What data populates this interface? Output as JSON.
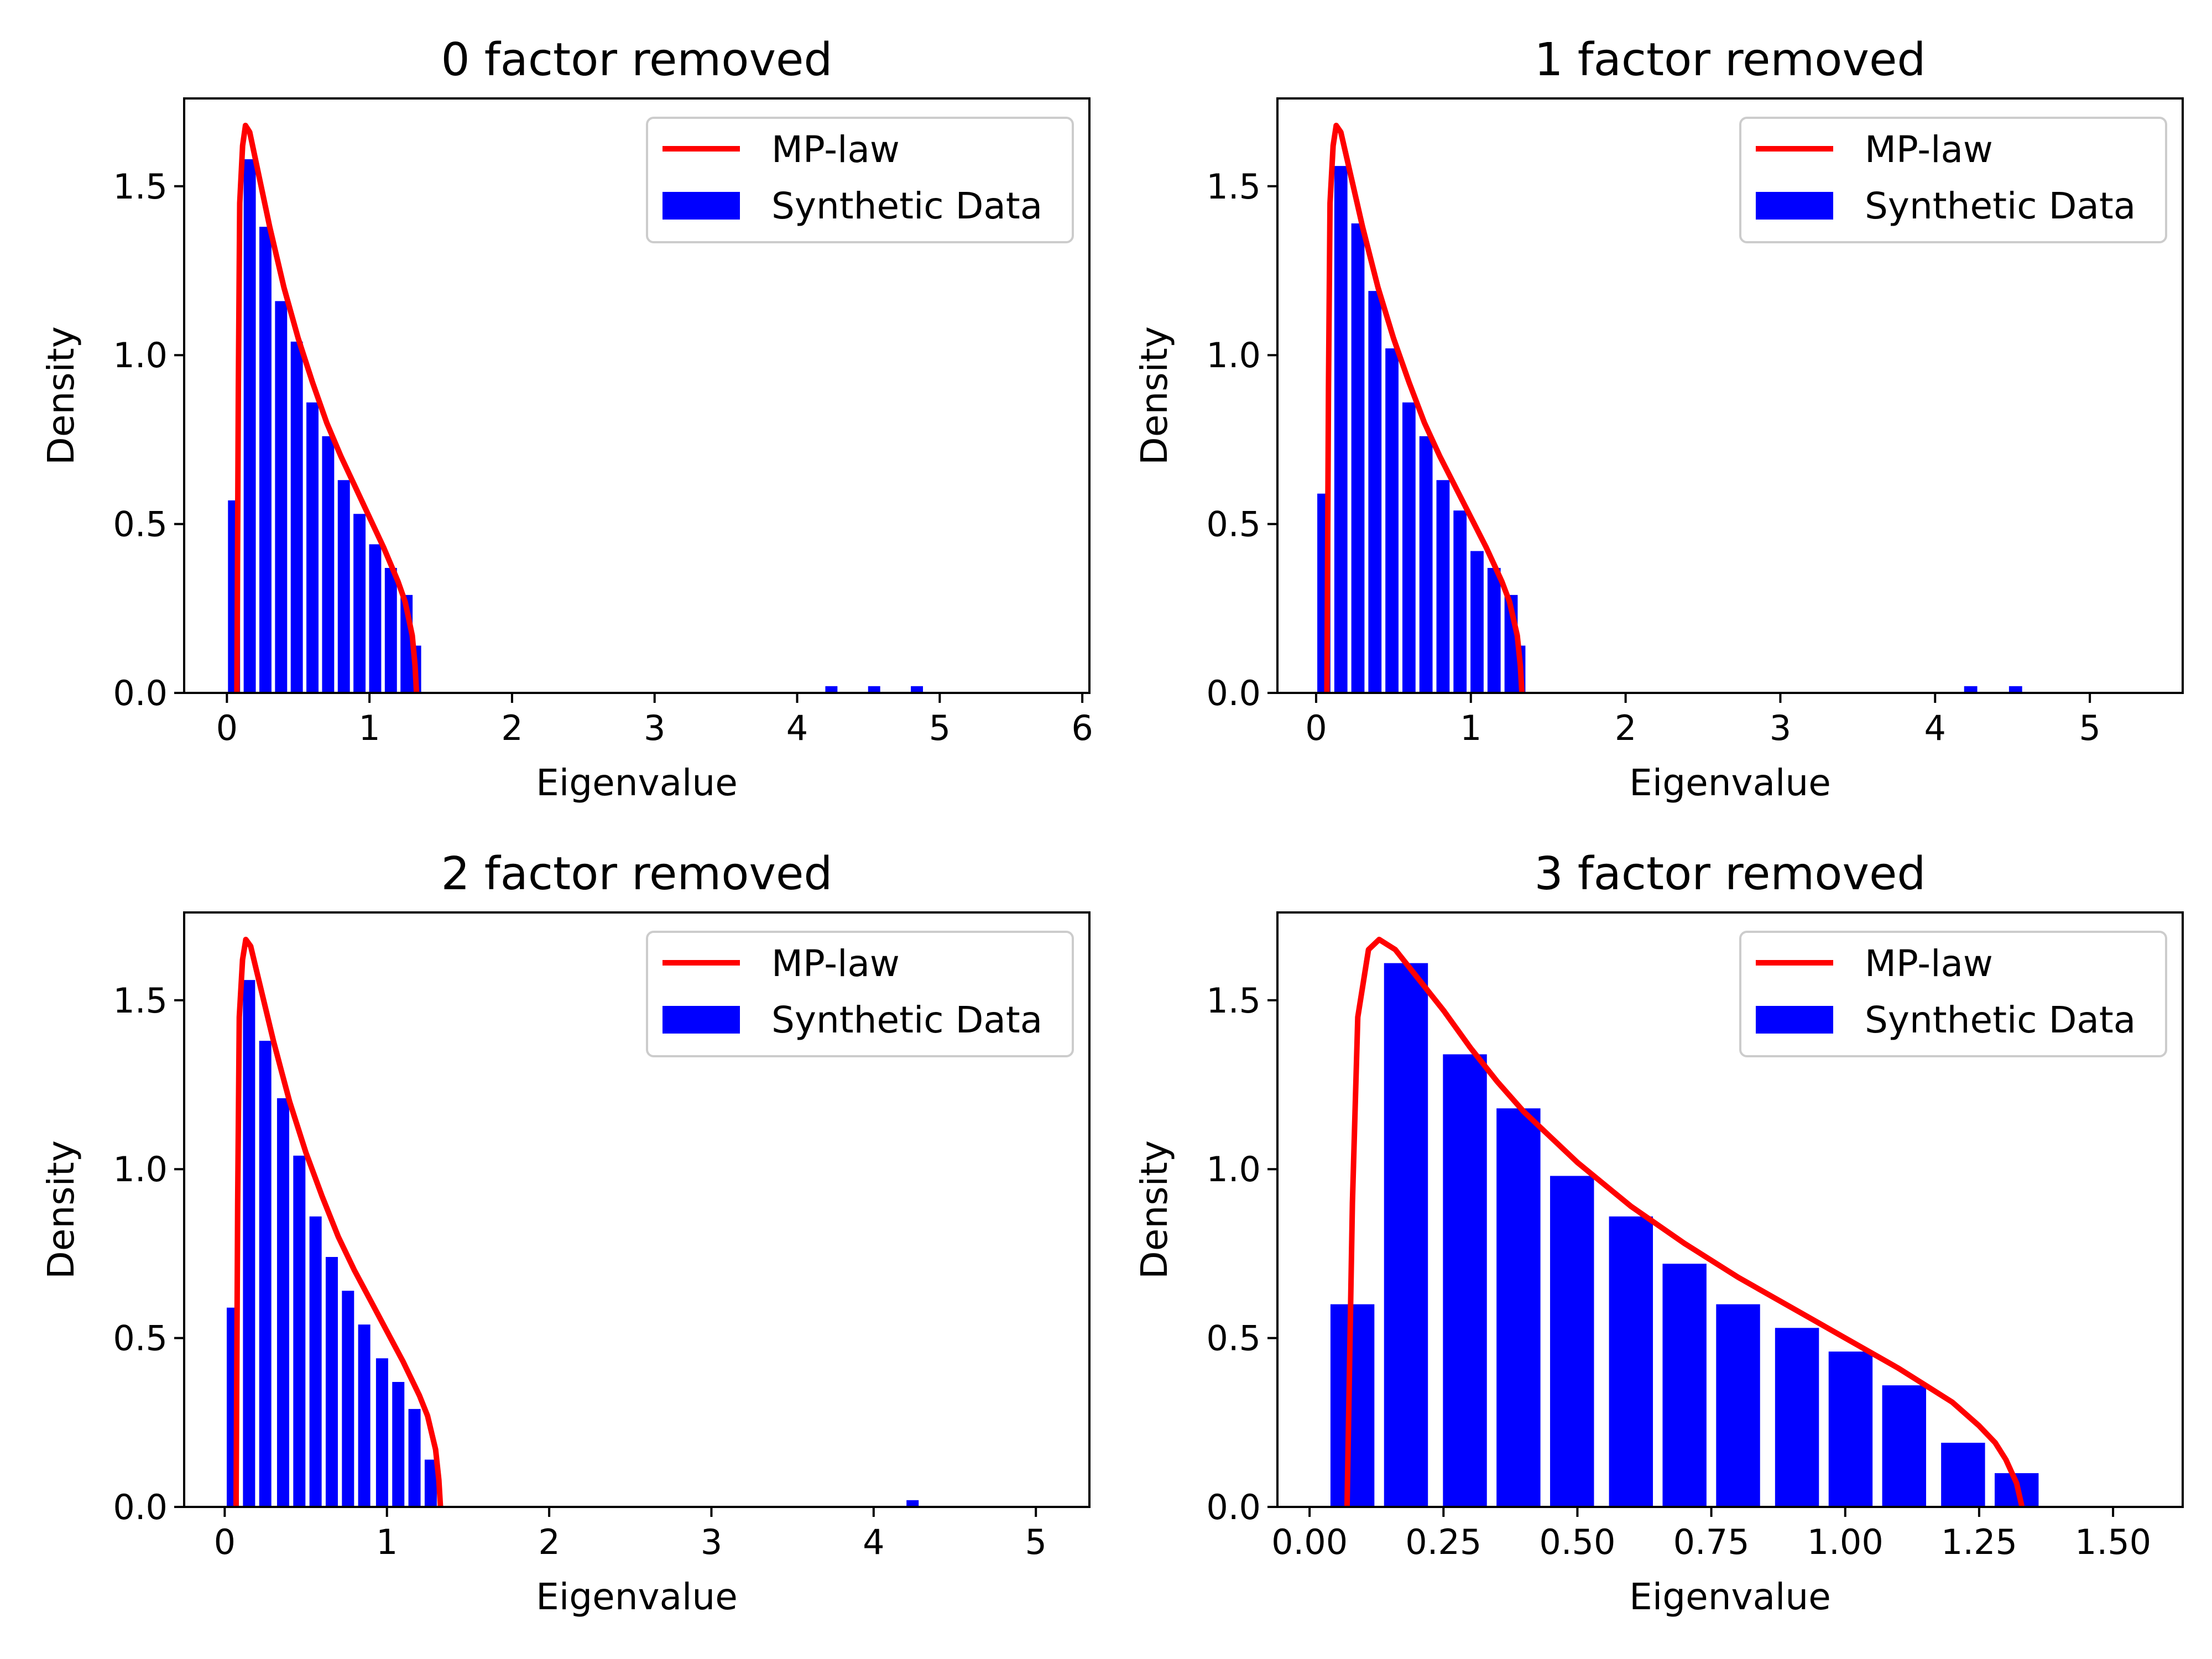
{
  "colors": {
    "mp_line": "#ff0000",
    "bars": "#0000ff",
    "axes": "#000000",
    "legend_border": "#cccccc"
  },
  "legend": {
    "line_label": "MP-law",
    "bar_label": "Synthetic Data",
    "placement": "upper right"
  },
  "chart_data": [
    {
      "type": "bar",
      "title": "0 factor removed",
      "xlabel": "Eigenvalue",
      "ylabel": "Density",
      "xlim": [
        -0.3,
        6.05
      ],
      "ylim": [
        0,
        1.76
      ],
      "xticks": [
        0,
        1,
        2,
        3,
        4,
        5,
        6
      ],
      "xtick_labels": [
        "0",
        "1",
        "2",
        "3",
        "4",
        "5",
        "6"
      ],
      "yticks": [
        0.0,
        0.5,
        1.0,
        1.5
      ],
      "ytick_labels": [
        "0.0",
        "0.5",
        "1.0",
        "1.5"
      ],
      "bar_width": 0.085,
      "bars": [
        {
          "x": 0.05,
          "y": 0.57
        },
        {
          "x": 0.16,
          "y": 1.58
        },
        {
          "x": 0.27,
          "y": 1.38
        },
        {
          "x": 0.38,
          "y": 1.16
        },
        {
          "x": 0.49,
          "y": 1.04
        },
        {
          "x": 0.6,
          "y": 0.86
        },
        {
          "x": 0.71,
          "y": 0.76
        },
        {
          "x": 0.82,
          "y": 0.63
        },
        {
          "x": 0.93,
          "y": 0.53
        },
        {
          "x": 1.04,
          "y": 0.44
        },
        {
          "x": 1.15,
          "y": 0.37
        },
        {
          "x": 1.26,
          "y": 0.29
        },
        {
          "x": 1.32,
          "y": 0.14
        },
        {
          "x": 4.24,
          "y": 0.02
        },
        {
          "x": 4.54,
          "y": 0.02
        },
        {
          "x": 4.84,
          "y": 0.02
        }
      ],
      "mp_curve": [
        [
          0.07,
          0.0
        ],
        [
          0.08,
          0.9
        ],
        [
          0.09,
          1.45
        ],
        [
          0.11,
          1.62
        ],
        [
          0.13,
          1.68
        ],
        [
          0.16,
          1.66
        ],
        [
          0.2,
          1.58
        ],
        [
          0.25,
          1.48
        ],
        [
          0.3,
          1.38
        ],
        [
          0.35,
          1.29
        ],
        [
          0.4,
          1.2
        ],
        [
          0.5,
          1.05
        ],
        [
          0.6,
          0.92
        ],
        [
          0.7,
          0.8
        ],
        [
          0.8,
          0.7
        ],
        [
          0.9,
          0.61
        ],
        [
          1.0,
          0.52
        ],
        [
          1.1,
          0.43
        ],
        [
          1.2,
          0.33
        ],
        [
          1.25,
          0.27
        ],
        [
          1.3,
          0.17
        ],
        [
          1.32,
          0.08
        ],
        [
          1.33,
          0.0
        ]
      ]
    },
    {
      "type": "bar",
      "title": "1 factor removed",
      "xlabel": "Eigenvalue",
      "ylabel": "Density",
      "xlim": [
        -0.25,
        5.6
      ],
      "ylim": [
        0,
        1.76
      ],
      "xticks": [
        0,
        1,
        2,
        3,
        4,
        5
      ],
      "xtick_labels": [
        "0",
        "1",
        "2",
        "3",
        "4",
        "5"
      ],
      "yticks": [
        0.0,
        0.5,
        1.0,
        1.5
      ],
      "ytick_labels": [
        "0.0",
        "0.5",
        "1.0",
        "1.5"
      ],
      "bar_width": 0.085,
      "bars": [
        {
          "x": 0.05,
          "y": 0.59
        },
        {
          "x": 0.16,
          "y": 1.56
        },
        {
          "x": 0.27,
          "y": 1.39
        },
        {
          "x": 0.38,
          "y": 1.19
        },
        {
          "x": 0.49,
          "y": 1.02
        },
        {
          "x": 0.6,
          "y": 0.86
        },
        {
          "x": 0.71,
          "y": 0.76
        },
        {
          "x": 0.82,
          "y": 0.63
        },
        {
          "x": 0.93,
          "y": 0.54
        },
        {
          "x": 1.04,
          "y": 0.42
        },
        {
          "x": 1.15,
          "y": 0.37
        },
        {
          "x": 1.26,
          "y": 0.29
        },
        {
          "x": 1.31,
          "y": 0.14
        },
        {
          "x": 4.23,
          "y": 0.02
        },
        {
          "x": 4.52,
          "y": 0.02
        }
      ],
      "mp_curve": [
        [
          0.07,
          0.0
        ],
        [
          0.08,
          0.9
        ],
        [
          0.09,
          1.45
        ],
        [
          0.11,
          1.62
        ],
        [
          0.13,
          1.68
        ],
        [
          0.16,
          1.66
        ],
        [
          0.2,
          1.58
        ],
        [
          0.25,
          1.48
        ],
        [
          0.3,
          1.38
        ],
        [
          0.35,
          1.29
        ],
        [
          0.4,
          1.2
        ],
        [
          0.5,
          1.05
        ],
        [
          0.6,
          0.92
        ],
        [
          0.7,
          0.8
        ],
        [
          0.8,
          0.7
        ],
        [
          0.9,
          0.61
        ],
        [
          1.0,
          0.52
        ],
        [
          1.1,
          0.43
        ],
        [
          1.2,
          0.33
        ],
        [
          1.25,
          0.27
        ],
        [
          1.3,
          0.17
        ],
        [
          1.32,
          0.08
        ],
        [
          1.33,
          0.0
        ]
      ]
    },
    {
      "type": "bar",
      "title": "2 factor removed",
      "xlabel": "Eigenvalue",
      "ylabel": "Density",
      "xlim": [
        -0.25,
        5.33
      ],
      "ylim": [
        0,
        1.76
      ],
      "xticks": [
        0,
        1,
        2,
        3,
        4,
        5
      ],
      "xtick_labels": [
        "0",
        "1",
        "2",
        "3",
        "4",
        "5"
      ],
      "yticks": [
        0.0,
        0.5,
        1.0,
        1.5
      ],
      "ytick_labels": [
        "0.0",
        "0.5",
        "1.0",
        "1.5"
      ],
      "bar_width": 0.075,
      "bars": [
        {
          "x": 0.05,
          "y": 0.59
        },
        {
          "x": 0.15,
          "y": 1.56
        },
        {
          "x": 0.25,
          "y": 1.38
        },
        {
          "x": 0.36,
          "y": 1.21
        },
        {
          "x": 0.46,
          "y": 1.04
        },
        {
          "x": 0.56,
          "y": 0.86
        },
        {
          "x": 0.66,
          "y": 0.74
        },
        {
          "x": 0.76,
          "y": 0.64
        },
        {
          "x": 0.86,
          "y": 0.54
        },
        {
          "x": 0.97,
          "y": 0.44
        },
        {
          "x": 1.07,
          "y": 0.37
        },
        {
          "x": 1.17,
          "y": 0.29
        },
        {
          "x": 1.27,
          "y": 0.14
        },
        {
          "x": 4.24,
          "y": 0.02
        }
      ],
      "mp_curve": [
        [
          0.07,
          0.0
        ],
        [
          0.08,
          0.9
        ],
        [
          0.09,
          1.45
        ],
        [
          0.11,
          1.62
        ],
        [
          0.13,
          1.68
        ],
        [
          0.16,
          1.66
        ],
        [
          0.2,
          1.58
        ],
        [
          0.25,
          1.48
        ],
        [
          0.3,
          1.38
        ],
        [
          0.35,
          1.29
        ],
        [
          0.4,
          1.2
        ],
        [
          0.5,
          1.05
        ],
        [
          0.6,
          0.92
        ],
        [
          0.7,
          0.8
        ],
        [
          0.8,
          0.7
        ],
        [
          0.9,
          0.61
        ],
        [
          1.0,
          0.52
        ],
        [
          1.1,
          0.43
        ],
        [
          1.2,
          0.33
        ],
        [
          1.25,
          0.27
        ],
        [
          1.3,
          0.17
        ],
        [
          1.32,
          0.08
        ],
        [
          1.33,
          0.0
        ]
      ]
    },
    {
      "type": "bar",
      "title": "3 factor removed",
      "xlabel": "Eigenvalue",
      "ylabel": "Density",
      "xlim": [
        -0.06,
        1.63
      ],
      "ylim": [
        0,
        1.76
      ],
      "xticks": [
        0.0,
        0.25,
        0.5,
        0.75,
        1.0,
        1.25,
        1.5
      ],
      "xtick_labels": [
        "0.00",
        "0.25",
        "0.50",
        "0.75",
        "1.00",
        "1.25",
        "1.50"
      ],
      "yticks": [
        0.0,
        0.5,
        1.0,
        1.5
      ],
      "ytick_labels": [
        "0.0",
        "0.5",
        "1.0",
        "1.5"
      ],
      "bar_width": 0.082,
      "bars": [
        {
          "x": 0.08,
          "y": 0.6
        },
        {
          "x": 0.18,
          "y": 1.61
        },
        {
          "x": 0.29,
          "y": 1.34
        },
        {
          "x": 0.39,
          "y": 1.18
        },
        {
          "x": 0.49,
          "y": 0.98
        },
        {
          "x": 0.6,
          "y": 0.86
        },
        {
          "x": 0.7,
          "y": 0.72
        },
        {
          "x": 0.8,
          "y": 0.6
        },
        {
          "x": 0.91,
          "y": 0.53
        },
        {
          "x": 1.01,
          "y": 0.46
        },
        {
          "x": 1.11,
          "y": 0.36
        },
        {
          "x": 1.22,
          "y": 0.19
        },
        {
          "x": 1.32,
          "y": 0.1
        }
      ],
      "mp_curve": [
        [
          0.07,
          0.0
        ],
        [
          0.08,
          0.9
        ],
        [
          0.09,
          1.45
        ],
        [
          0.11,
          1.65
        ],
        [
          0.13,
          1.68
        ],
        [
          0.16,
          1.65
        ],
        [
          0.2,
          1.57
        ],
        [
          0.25,
          1.47
        ],
        [
          0.3,
          1.36
        ],
        [
          0.35,
          1.26
        ],
        [
          0.4,
          1.17
        ],
        [
          0.5,
          1.02
        ],
        [
          0.6,
          0.89
        ],
        [
          0.7,
          0.78
        ],
        [
          0.8,
          0.68
        ],
        [
          0.9,
          0.59
        ],
        [
          1.0,
          0.5
        ],
        [
          1.1,
          0.41
        ],
        [
          1.15,
          0.36
        ],
        [
          1.2,
          0.31
        ],
        [
          1.25,
          0.24
        ],
        [
          1.28,
          0.19
        ],
        [
          1.3,
          0.14
        ],
        [
          1.32,
          0.07
        ],
        [
          1.33,
          0.0
        ]
      ]
    }
  ]
}
